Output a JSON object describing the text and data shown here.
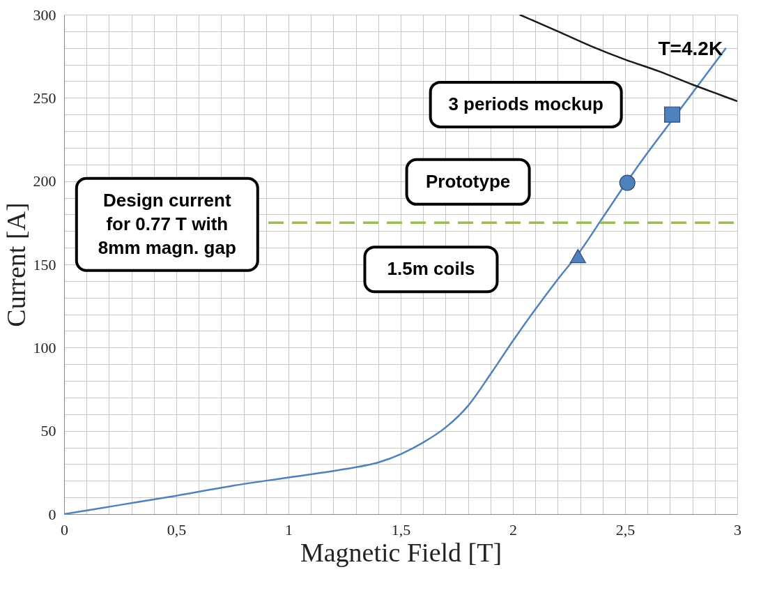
{
  "chart_data": {
    "type": "line",
    "xlabel": "Magnetic Field [T]",
    "ylabel": "Current [A]",
    "xlim": [
      0,
      3
    ],
    "ylim": [
      0,
      300
    ],
    "grid": true,
    "xticks": [
      0,
      {
        "value": 0.1,
        "label": null
      },
      {
        "value": 0.2,
        "label": null
      },
      {
        "value": 0.3,
        "label": null
      },
      {
        "value": 0.4,
        "label": null
      },
      {
        "value": 0.5,
        "label": "0,5"
      },
      {
        "value": 0.6,
        "label": null
      },
      {
        "value": 0.7,
        "label": null
      },
      {
        "value": 0.8,
        "label": null
      },
      {
        "value": 0.9,
        "label": null
      },
      1,
      {
        "value": 1.1,
        "label": null
      },
      {
        "value": 1.2,
        "label": null
      },
      {
        "value": 1.3,
        "label": null
      },
      {
        "value": 1.4,
        "label": null
      },
      {
        "value": 1.5,
        "label": "1,5"
      },
      {
        "value": 1.6,
        "label": null
      },
      {
        "value": 1.7,
        "label": null
      },
      {
        "value": 1.8,
        "label": null
      },
      {
        "value": 1.9,
        "label": null
      },
      2,
      {
        "value": 2.1,
        "label": null
      },
      {
        "value": 2.2,
        "label": null
      },
      {
        "value": 2.3,
        "label": null
      },
      {
        "value": 2.4,
        "label": null
      },
      {
        "value": 2.5,
        "label": "2,5"
      },
      {
        "value": 2.6,
        "label": null
      },
      {
        "value": 2.7,
        "label": null
      },
      {
        "value": 2.8,
        "label": null
      },
      {
        "value": 2.9,
        "label": null
      },
      3
    ],
    "yticks": [
      0,
      {
        "value": 10,
        "label": null
      },
      {
        "value": 20,
        "label": null
      },
      {
        "value": 30,
        "label": null
      },
      {
        "value": 40,
        "label": null
      },
      50,
      {
        "value": 60,
        "label": null
      },
      {
        "value": 70,
        "label": null
      },
      {
        "value": 80,
        "label": null
      },
      {
        "value": 90,
        "label": null
      },
      100,
      {
        "value": 110,
        "label": null
      },
      {
        "value": 120,
        "label": null
      },
      {
        "value": 130,
        "label": null
      },
      {
        "value": 140,
        "label": null
      },
      150,
      {
        "value": 160,
        "label": null
      },
      {
        "value": 170,
        "label": null
      },
      {
        "value": 180,
        "label": null
      },
      {
        "value": 190,
        "label": null
      },
      200,
      {
        "value": 210,
        "label": null
      },
      {
        "value": 220,
        "label": null
      },
      {
        "value": 230,
        "label": null
      },
      {
        "value": 240,
        "label": null
      },
      250,
      {
        "value": 260,
        "label": null
      },
      {
        "value": 270,
        "label": null
      },
      {
        "value": 280,
        "label": null
      },
      {
        "value": 290,
        "label": null
      },
      300
    ],
    "series": [
      {
        "color": "#4f81bd",
        "line_style": "solid",
        "x": [
          0,
          0.25,
          0.5,
          0.75,
          1,
          1.25,
          1.4,
          1.5,
          1.6,
          1.7,
          1.8,
          1.9,
          2,
          2.1,
          2.2,
          2.3,
          2.4,
          2.5,
          2.6,
          2.7,
          2.8,
          2.95
        ],
        "values": [
          0,
          5.5,
          11,
          17,
          22,
          27,
          31,
          36,
          43,
          52,
          65,
          84,
          104,
          123,
          141,
          158,
          178,
          198,
          217,
          235,
          253,
          280
        ]
      },
      {
        "name": "T=4.2K",
        "color": "#1a1a1a",
        "line_style": "solid",
        "x": [
          2.03,
          2.2,
          2.35,
          2.5,
          2.65,
          2.8,
          2.9,
          3
        ],
        "values": [
          300,
          290,
          281,
          273,
          266,
          258,
          253,
          248
        ]
      },
      {
        "color": "#9bbb59",
        "line_style": "dashed",
        "x": [
          0.91,
          3
        ],
        "values": [
          175,
          175
        ]
      },
      {
        "type": "scatter",
        "marker": "square",
        "color": "#4f81bd",
        "x": [
          2.71
        ],
        "values": [
          240
        ]
      },
      {
        "type": "scatter",
        "marker": "circle",
        "color": "#4f81bd",
        "x": [
          2.51
        ],
        "values": [
          199
        ]
      },
      {
        "type": "scatter",
        "marker": "triangle",
        "color": "#4f81bd",
        "x": [
          2.29
        ],
        "values": [
          155
        ]
      }
    ],
    "annotations": [
      "3 periods mockup",
      "Prototype",
      "1.5m coils",
      "Design current\nfor 0.77 T with\n8mm magn. gap"
    ]
  }
}
